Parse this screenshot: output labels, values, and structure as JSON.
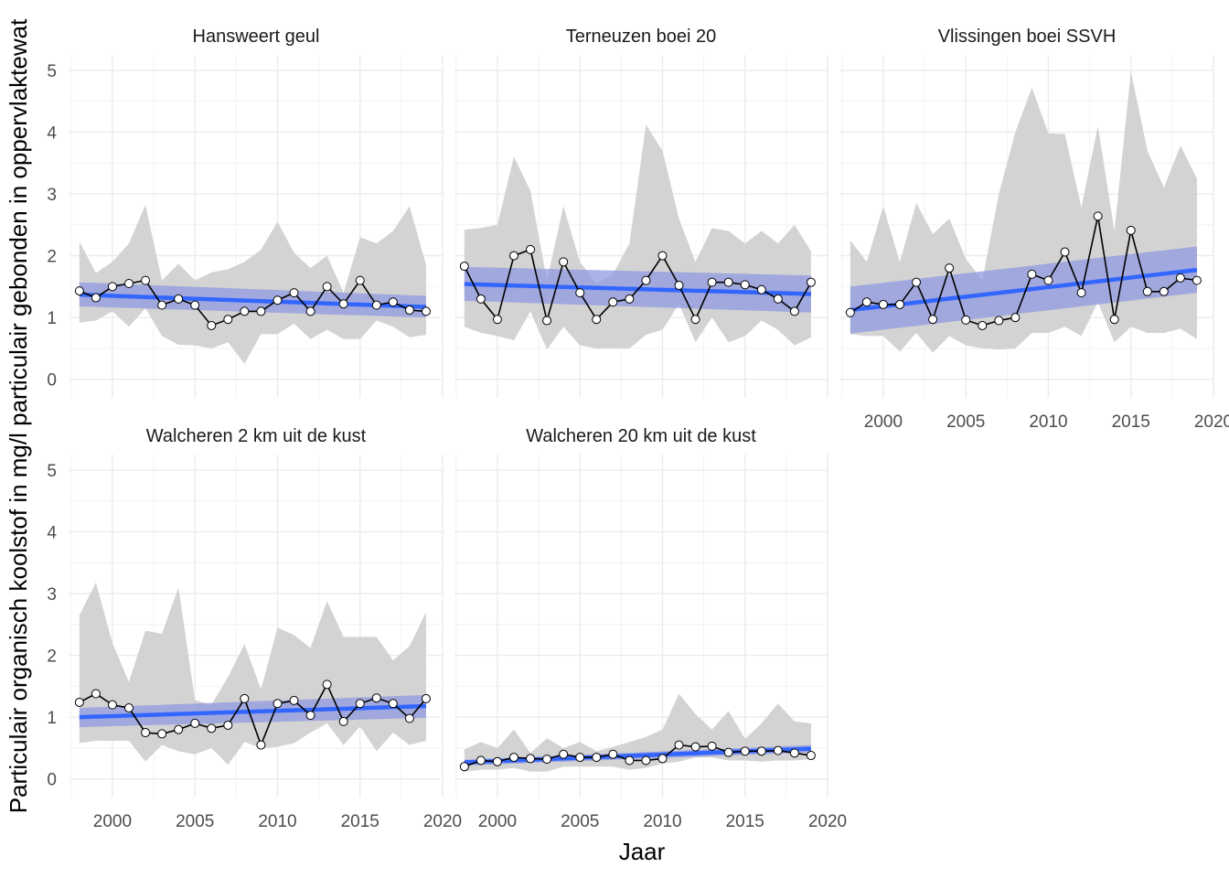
{
  "chart_data": {
    "type": "line",
    "xlabel": "Jaar",
    "ylabel": "Particulair organisch koolstof in mg/l particulair gebonden in oppervlaktewat",
    "xlim": [
      1997.4,
      2020.0
    ],
    "ylim": [
      -0.3,
      5.25
    ],
    "x_ticks": [
      2000,
      2005,
      2010,
      2015,
      2020
    ],
    "y_ticks": [
      0,
      1,
      2,
      3,
      4,
      5
    ],
    "grid": true,
    "colors": {
      "band": "#d3d3d3",
      "trend": "#3366ff",
      "trend_ci": "#8f99e0",
      "line": "#000000",
      "point_fill": "#ffffff"
    },
    "years": [
      1998,
      1999,
      2000,
      2001,
      2002,
      2003,
      2004,
      2005,
      2006,
      2007,
      2008,
      2009,
      2010,
      2011,
      2012,
      2013,
      2014,
      2015,
      2016,
      2017,
      2018,
      2019
    ],
    "panels": [
      {
        "title": "Hansweert geul",
        "values": [
          1.43,
          1.32,
          1.5,
          1.55,
          1.6,
          1.2,
          1.3,
          1.2,
          0.87,
          0.97,
          1.1,
          1.1,
          1.28,
          1.4,
          1.1,
          1.5,
          1.22,
          1.6,
          1.2,
          1.25,
          1.12,
          1.1
        ],
        "band_upper": [
          2.23,
          1.72,
          1.9,
          2.2,
          2.82,
          1.6,
          1.87,
          1.6,
          1.73,
          1.78,
          1.9,
          2.1,
          2.55,
          2.05,
          1.8,
          2.0,
          1.4,
          2.3,
          2.2,
          2.4,
          2.8,
          1.85
        ],
        "band_lower": [
          0.92,
          0.95,
          1.1,
          0.85,
          1.15,
          0.7,
          0.56,
          0.55,
          0.5,
          0.6,
          0.25,
          0.73,
          0.73,
          0.9,
          0.65,
          0.8,
          0.65,
          0.65,
          0.95,
          0.85,
          0.68,
          0.72
        ],
        "trend": [
          1.37,
          1.17
        ],
        "trend_ci_upper": [
          1.57,
          1.35
        ],
        "trend_ci_lower": [
          1.18,
          1.0
        ]
      },
      {
        "title": "Terneuzen boei 20",
        "values": [
          1.83,
          1.3,
          0.97,
          2.0,
          2.1,
          0.95,
          1.9,
          1.4,
          0.97,
          1.25,
          1.3,
          1.6,
          2.0,
          1.52,
          0.97,
          1.57,
          1.57,
          1.53,
          1.45,
          1.3,
          1.1,
          1.57
        ],
        "band_upper": [
          2.42,
          2.45,
          2.5,
          3.6,
          3.05,
          1.6,
          2.8,
          1.9,
          1.55,
          1.7,
          2.2,
          4.12,
          3.7,
          2.6,
          1.9,
          2.45,
          2.4,
          2.2,
          2.4,
          2.2,
          2.5,
          2.07
        ],
        "band_lower": [
          0.85,
          0.75,
          0.7,
          0.63,
          1.1,
          0.48,
          0.85,
          0.55,
          0.5,
          0.5,
          0.5,
          0.72,
          0.8,
          1.22,
          0.6,
          1.0,
          0.6,
          0.7,
          0.95,
          0.8,
          0.55,
          0.68
        ],
        "trend": [
          1.54,
          1.38
        ],
        "trend_ci_upper": [
          1.82,
          1.68
        ],
        "trend_ci_lower": [
          1.27,
          1.08
        ]
      },
      {
        "title": "Vlissingen boei SSVH",
        "values": [
          1.08,
          1.25,
          1.21,
          1.21,
          1.57,
          0.97,
          1.8,
          0.96,
          0.87,
          0.95,
          1.0,
          1.7,
          1.6,
          2.06,
          1.4,
          2.64,
          0.97,
          2.41,
          1.42,
          1.42,
          1.64,
          1.6
        ],
        "band_upper": [
          2.25,
          1.9,
          2.8,
          1.9,
          2.85,
          2.35,
          2.6,
          1.95,
          1.6,
          3.0,
          4.0,
          4.72,
          3.98,
          3.97,
          2.78,
          4.1,
          2.4,
          4.98,
          3.7,
          3.1,
          3.78,
          3.25
        ],
        "band_lower": [
          0.73,
          0.7,
          0.7,
          0.45,
          0.75,
          0.43,
          0.7,
          0.55,
          0.5,
          0.48,
          0.5,
          0.75,
          0.75,
          0.85,
          0.7,
          1.25,
          0.6,
          0.85,
          0.75,
          0.75,
          0.82,
          0.65
        ],
        "trend": [
          1.12,
          1.77
        ],
        "trend_ci_upper": [
          1.5,
          2.15
        ],
        "trend_ci_lower": [
          0.74,
          1.4
        ]
      },
      {
        "title": "Walcheren 2 km uit de kust",
        "values": [
          1.24,
          1.38,
          1.2,
          1.15,
          0.75,
          0.73,
          0.8,
          0.9,
          0.82,
          0.87,
          1.3,
          0.55,
          1.22,
          1.27,
          1.03,
          1.53,
          0.93,
          1.22,
          1.31,
          1.22,
          0.98,
          1.3
        ],
        "band_upper": [
          2.65,
          3.18,
          2.2,
          1.57,
          2.4,
          2.35,
          3.1,
          1.28,
          1.2,
          1.65,
          2.18,
          1.45,
          2.45,
          2.33,
          2.12,
          2.88,
          2.3,
          2.3,
          2.3,
          1.92,
          2.15,
          2.7
        ],
        "band_lower": [
          0.58,
          0.62,
          0.62,
          0.62,
          0.28,
          0.55,
          0.45,
          0.4,
          0.5,
          0.23,
          0.6,
          0.5,
          0.52,
          0.58,
          0.75,
          0.9,
          0.55,
          0.85,
          0.45,
          0.75,
          0.55,
          0.62
        ],
        "trend": [
          1.0,
          1.18
        ],
        "trend_ci_upper": [
          1.15,
          1.36
        ],
        "trend_ci_lower": [
          0.84,
          0.99
        ]
      },
      {
        "title": "Walcheren 20 km uit de kust",
        "values": [
          0.2,
          0.3,
          0.28,
          0.35,
          0.33,
          0.32,
          0.4,
          0.35,
          0.35,
          0.4,
          0.3,
          0.3,
          0.33,
          0.55,
          0.52,
          0.53,
          0.43,
          0.45,
          0.45,
          0.46,
          0.42,
          0.38
        ],
        "band_upper": [
          0.48,
          0.6,
          0.5,
          0.8,
          0.42,
          0.66,
          0.5,
          0.6,
          0.45,
          0.52,
          0.6,
          0.68,
          0.8,
          1.38,
          1.05,
          0.8,
          1.1,
          0.65,
          0.9,
          1.22,
          0.93,
          0.9
        ],
        "band_lower": [
          0.12,
          0.15,
          0.15,
          0.18,
          0.12,
          0.12,
          0.2,
          0.2,
          0.2,
          0.2,
          0.15,
          0.18,
          0.25,
          0.28,
          0.35,
          0.35,
          0.3,
          0.3,
          0.28,
          0.3,
          0.3,
          0.32
        ],
        "trend": [
          0.27,
          0.49
        ],
        "trend_ci_upper": [
          0.31,
          0.55
        ],
        "trend_ci_lower": [
          0.22,
          0.43
        ]
      }
    ]
  }
}
